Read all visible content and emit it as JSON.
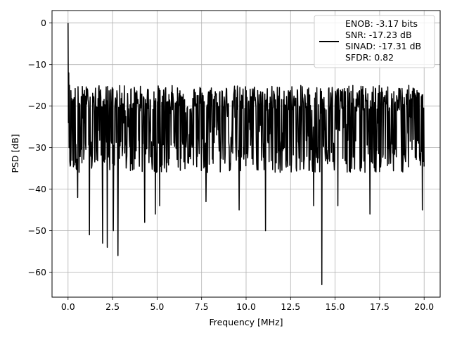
{
  "chart_data": {
    "type": "line",
    "xlabel": "Frequency [MHz]",
    "ylabel": "PSD [dB]",
    "xlim": [
      -0.9,
      20.9
    ],
    "ylim": [
      -66,
      3
    ],
    "x_ticks": [
      0.0,
      2.5,
      5.0,
      7.5,
      10.0,
      12.5,
      15.0,
      17.5,
      20.0
    ],
    "x_tick_labels": [
      "0.0",
      "2.5",
      "5.0",
      "7.5",
      "10.0",
      "12.5",
      "15.0",
      "17.5",
      "20.0"
    ],
    "y_ticks": [
      0,
      -10,
      -20,
      -30,
      -40,
      -50,
      -60
    ],
    "y_tick_labels": [
      "0",
      "−10",
      "−20",
      "−30",
      "−40",
      "−50",
      "−60"
    ],
    "grid": true,
    "legend_position": "top-right",
    "series": [
      {
        "color": "#000000",
        "x_range": [
          0,
          20
        ],
        "num_points": 1000,
        "typical_upper_envelope_db": -18,
        "typical_lower_envelope_db": -32,
        "median_level_db": -24,
        "peak": {
          "x": 0.0,
          "y": 0
        },
        "notable_dips": [
          {
            "x": 0.55,
            "y": -42
          },
          {
            "x": 1.2,
            "y": -51
          },
          {
            "x": 1.95,
            "y": -53
          },
          {
            "x": 2.2,
            "y": -54
          },
          {
            "x": 2.55,
            "y": -50
          },
          {
            "x": 2.8,
            "y": -56
          },
          {
            "x": 4.3,
            "y": -48
          },
          {
            "x": 4.9,
            "y": -46
          },
          {
            "x": 5.15,
            "y": -44
          },
          {
            "x": 7.75,
            "y": -43
          },
          {
            "x": 9.6,
            "y": -45
          },
          {
            "x": 11.1,
            "y": -50
          },
          {
            "x": 13.8,
            "y": -44
          },
          {
            "x": 14.25,
            "y": -63
          },
          {
            "x": 15.15,
            "y": -44
          },
          {
            "x": 16.95,
            "y": -46
          },
          {
            "x": 19.9,
            "y": -45
          }
        ]
      }
    ],
    "legend_entries": [
      "ENOB: -3.17 bits",
      "SNR: -17.23 dB",
      "SINAD: -17.31 dB",
      "SFDR: 0.82"
    ]
  }
}
